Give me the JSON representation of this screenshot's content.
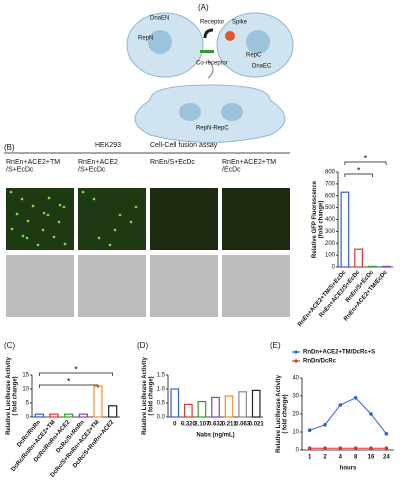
{
  "panel_labels": [
    "(A)",
    "(B)",
    "(C)",
    "(D)",
    "(E)"
  ],
  "diagram": {
    "dna_en": "DnaEN",
    "rep_n": "RepN",
    "receptor": "Receptor",
    "spike": "Spike",
    "rep_c": "RepC",
    "dna_ec": "DnaEC",
    "co_receptor": "Co-receptor",
    "fused": "RepN-RepC"
  },
  "micrographs": {
    "cell_line": "HEK293",
    "assay": "Cell-Cell fusion assay",
    "columns": [
      "RnEn+ACE2+TM\n/S+EcDc",
      "RnEn+ACE2\n/S+EcDc",
      "RnEn/S+EcDc",
      "RnEn+ACE2+TM\n/EcDc"
    ]
  },
  "chart_data": [
    {
      "type": "bar",
      "y_label": "Relative GFP Fluorescence\n(fold change)",
      "categories": [
        "RnEn+ACE2+TM/S+EcDc",
        "RnEn+ACE2/S+EcDc",
        "RnEn/S+EcDc",
        "RnEn+ACE2+TM/EcDc"
      ],
      "values": [
        630,
        150,
        5,
        5
      ],
      "colors": [
        "#2e5fd6",
        "#e0322b",
        "#2ca02c",
        "#8e3fb5"
      ],
      "ylim": [
        0,
        800
      ],
      "yticks": [
        0,
        100,
        200,
        300,
        400,
        500,
        600,
        700,
        800
      ],
      "annotations": [
        "*",
        "*"
      ]
    },
    {
      "type": "bar",
      "y_label": "Relative Luciferase Activity\n( fold change)",
      "categories": [
        "DcRc/RnRn",
        "DcRc/RnRn+ACE2+TM",
        "DcRc/RnRn+ACE2",
        "DcRc/S+RnRn",
        "DcRc/S+RnRn+ACE2+TM",
        "DcRc/S+RnRn+ACE2"
      ],
      "values": [
        1,
        1,
        1,
        1,
        11,
        4
      ],
      "colors": [
        "#2e5fd6",
        "#e0322b",
        "#2ca02c",
        "#8e3fb5",
        "#f28e2b",
        "#222222"
      ],
      "ylim": [
        0,
        15
      ],
      "yticks": [
        0,
        5,
        10,
        15
      ],
      "annotations": [
        "*",
        "*"
      ]
    },
    {
      "type": "bar",
      "y_label": "Relative Luciferase Activity\n( fold change)",
      "x_label": "Nabs (ng/mL)",
      "categories": [
        "0",
        "6.320",
        "2.107",
        "0.632",
        "0.211",
        "0.063",
        "0.021"
      ],
      "values": [
        1.0,
        0.45,
        0.55,
        0.7,
        0.75,
        0.9,
        0.95
      ],
      "colors": [
        "#2e5fd6",
        "#e0322b",
        "#2ca02c",
        "#8e3fb5",
        "#f28e2b",
        "#888888",
        "#222222"
      ],
      "ylim": [
        0,
        1.5
      ],
      "yticks": [
        {
          "value": 0,
          "label": "0.0"
        },
        {
          "value": 0.5,
          "label": "0.5"
        },
        {
          "value": 1,
          "label": "1.0"
        },
        {
          "value": 1.5,
          "label": "1.5"
        }
      ]
    },
    {
      "type": "line",
      "y_label": "Relative Luciferase Activity\n( fold change)",
      "x_label": "hours",
      "categories": [
        "1",
        "2",
        "4",
        "8",
        "16",
        "24"
      ],
      "series": [
        {
          "name": "RnDn+ACE2+TM/DcRc+S",
          "color": "#2e5fd6",
          "values": [
            11,
            14,
            25,
            29,
            20,
            9
          ]
        },
        {
          "name": "RnDn/DcRc",
          "color": "#e0322b",
          "values": [
            1,
            1,
            1,
            1,
            1,
            1
          ]
        }
      ],
      "ylim": [
        0,
        40
      ],
      "yticks": [
        0,
        10,
        20,
        30,
        40
      ]
    }
  ]
}
